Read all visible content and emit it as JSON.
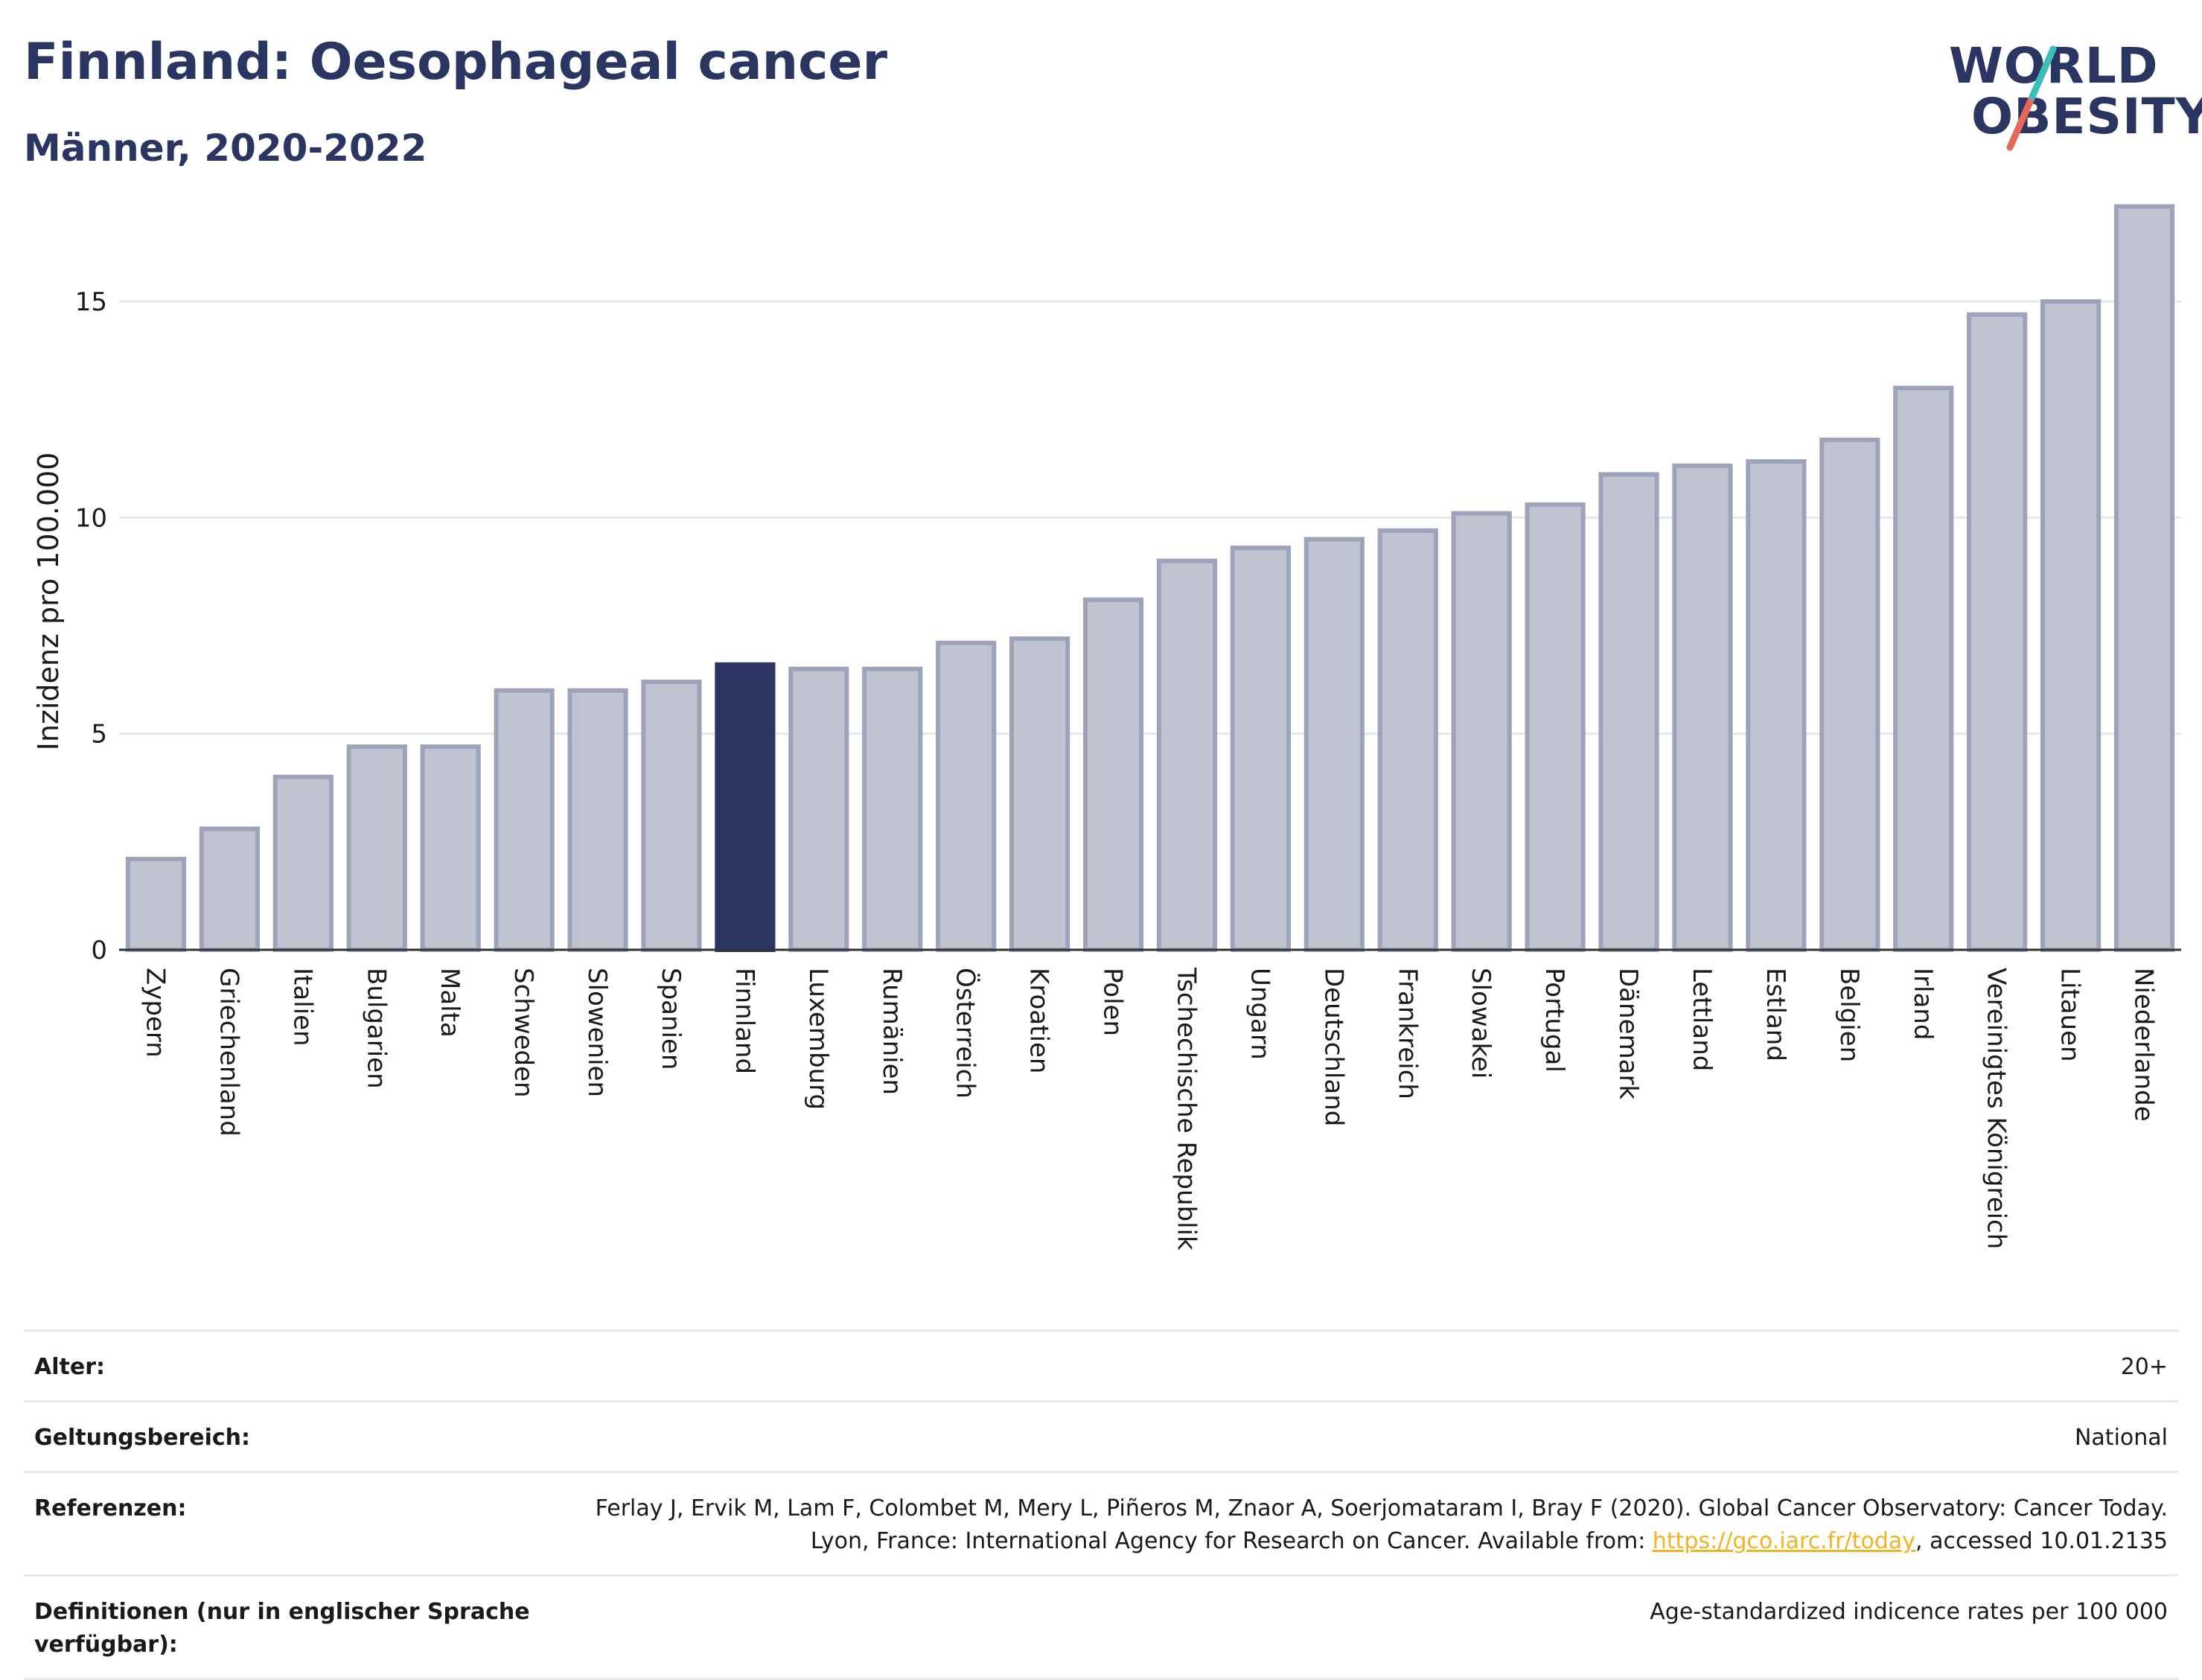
{
  "header": {
    "title": "Finnland: Oesophageal cancer",
    "subtitle": "Männer, 2020-2022"
  },
  "logo": {
    "line1": "WORLD",
    "line2": "OBESITY"
  },
  "chart_data": {
    "type": "bar",
    "ylabel": "Inzidenz pro 100.000",
    "ylim": [
      0,
      17.5
    ],
    "yticks": [
      0,
      5,
      10,
      15
    ],
    "grid": true,
    "highlight": "Finnland",
    "highlight_color": "#2a3561",
    "bar_color": "#c0c3d0",
    "bar_edge_color": "#9ea3bb",
    "categories": [
      "Zypern",
      "Griechenland",
      "Italien",
      "Bulgarien",
      "Malta",
      "Schweden",
      "Slowenien",
      "Spanien",
      "Finnland",
      "Luxemburg",
      "Rumänien",
      "Österreich",
      "Kroatien",
      "Polen",
      "Tschechische Republik",
      "Ungarn",
      "Deutschland",
      "Frankreich",
      "Slowakei",
      "Portugal",
      "Dänemark",
      "Lettland",
      "Estland",
      "Belgien",
      "Irland",
      "Vereinigtes Königreich",
      "Litauen",
      "Niederlande"
    ],
    "values": [
      2.1,
      2.8,
      4.0,
      4.7,
      4.7,
      6.0,
      6.0,
      6.2,
      6.6,
      6.5,
      6.5,
      7.1,
      7.2,
      8.1,
      9.0,
      9.3,
      9.5,
      9.7,
      10.1,
      10.3,
      11.0,
      11.2,
      11.3,
      11.8,
      13.0,
      14.7,
      15.0,
      17.2
    ]
  },
  "info": {
    "age_label": "Alter:",
    "age_value": "20+",
    "scope_label": "Geltungsbereich:",
    "scope_value": "National",
    "ref_label": "Referenzen:",
    "ref_text_1": "Ferlay J, Ervik M, Lam F, Colombet M, Mery L, Piñeros M, Znaor A, Soerjomataram I, Bray F (2020). Global Cancer Observatory: Cancer Today. Lyon, France: International Agency for Research on Cancer. Available from: ",
    "ref_link": "https://gco.iarc.fr/today",
    "ref_text_2": ", accessed 10.01.2135",
    "def_label": "Definitionen (nur in englischer Sprache verfügbar):",
    "def_value": "Age-standardized indicence rates per 100 000"
  }
}
